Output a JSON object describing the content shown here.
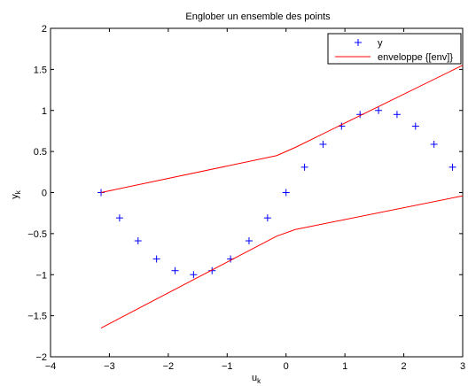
{
  "chart_data": {
    "type": "line",
    "title": "Englober un ensemble des points",
    "xlabel": "u_k",
    "ylabel": "y_k",
    "xlim": [
      -4,
      3
    ],
    "ylim": [
      -2,
      2
    ],
    "xticks": [
      -4,
      -3,
      -2,
      -1,
      0,
      1,
      2,
      3
    ],
    "yticks": [
      -2,
      -1.5,
      -1,
      -0.5,
      0,
      0.5,
      1,
      1.5,
      2
    ],
    "xtick_labels": [
      "−4",
      "−3",
      "−2",
      "−1",
      "0",
      "1",
      "2",
      "3"
    ],
    "ytick_labels": [
      "−2",
      "−1.5",
      "−1",
      "−0.5",
      "0",
      "0.5",
      "1",
      "1.5",
      "2"
    ],
    "grid": false,
    "legend": {
      "position": "top-right",
      "entries": [
        "y",
        "enveloppe {[env]}"
      ]
    },
    "series": [
      {
        "name": "y",
        "style": "markers",
        "marker": "+",
        "color": "#0000ff",
        "x": [
          -3.1416,
          -2.8274,
          -2.5133,
          -2.1991,
          -1.885,
          -1.5708,
          -1.2566,
          -0.9425,
          -0.6283,
          -0.3142,
          0.0,
          0.3142,
          0.6283,
          0.9425,
          1.2566,
          1.5708,
          1.885,
          2.1991,
          2.5133,
          2.8274
        ],
        "y": [
          0.0,
          -0.309,
          -0.5878,
          -0.809,
          -0.9511,
          -1.0,
          -0.9511,
          -0.809,
          -0.5878,
          -0.309,
          0.0,
          0.309,
          0.5878,
          0.809,
          0.9511,
          1.0,
          0.9511,
          0.809,
          0.5878,
          0.309
        ]
      },
      {
        "name": "enveloppe {[env]}",
        "style": "line",
        "color": "#ff0000",
        "x": [
          -3.1416,
          -0.1571,
          0.1571,
          3.0
        ],
        "y": [
          0.0,
          0.45,
          0.55,
          1.55
        ]
      },
      {
        "style": "line",
        "color": "#ff0000",
        "x": [
          -3.1416,
          -0.1571,
          0.1571,
          3.0
        ],
        "y": [
          -1.65,
          -0.53,
          -0.45,
          -0.04
        ]
      }
    ]
  }
}
